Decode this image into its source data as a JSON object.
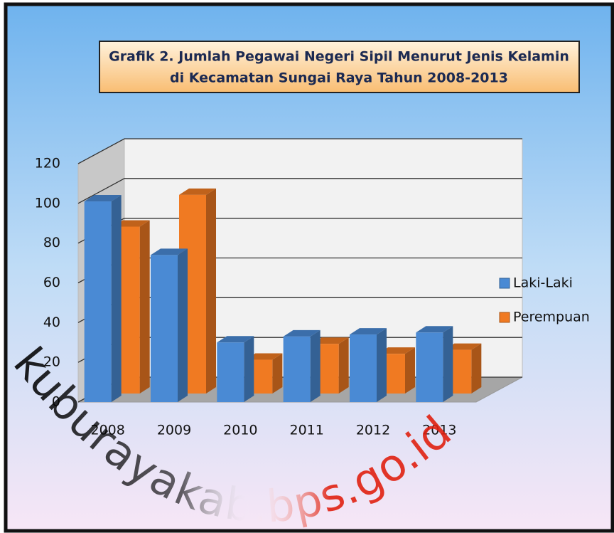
{
  "chart_data": {
    "type": "bar3d",
    "title": "Grafik 2. Jumlah Pegawai Negeri Sipil Menurut Jenis Kelamin",
    "subtitle": "di Kecamatan Sungai Raya Tahun 2008-2013",
    "categories": [
      "2008",
      "2009",
      "2010",
      "2011",
      "2012",
      "2013"
    ],
    "series": [
      {
        "name": "Laki-Laki",
        "color": "#4a8ad4",
        "values": [
          101,
          74,
          30,
          33,
          34,
          35
        ]
      },
      {
        "name": "Perempuan",
        "color": "#f07a22",
        "values": [
          84,
          100,
          17,
          25,
          20,
          22
        ]
      }
    ],
    "ylim": [
      0,
      120
    ],
    "yticks": [
      0,
      20,
      40,
      60,
      80,
      100,
      120
    ],
    "grid": true,
    "legend": "right",
    "watermark": "kuburayakab.bps.go.id"
  }
}
